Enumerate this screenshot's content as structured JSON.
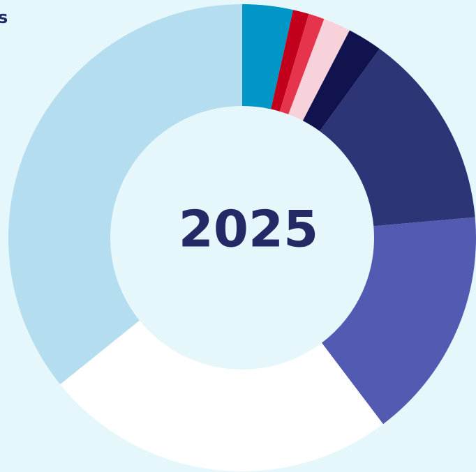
{
  "chart_data": {
    "type": "donut",
    "title": "s",
    "center_label": "2025",
    "values": [
      3.5,
      1.1,
      1.1,
      1.9,
      2.4,
      13.6,
      16.1,
      24.5,
      35.8
    ],
    "colors": [
      "#0096c6",
      "#c3001c",
      "#e5344b",
      "#f7d2da",
      "#10134d",
      "#2e3577",
      "#535ab1",
      "#ffffff",
      "#b4ddef"
    ]
  }
}
